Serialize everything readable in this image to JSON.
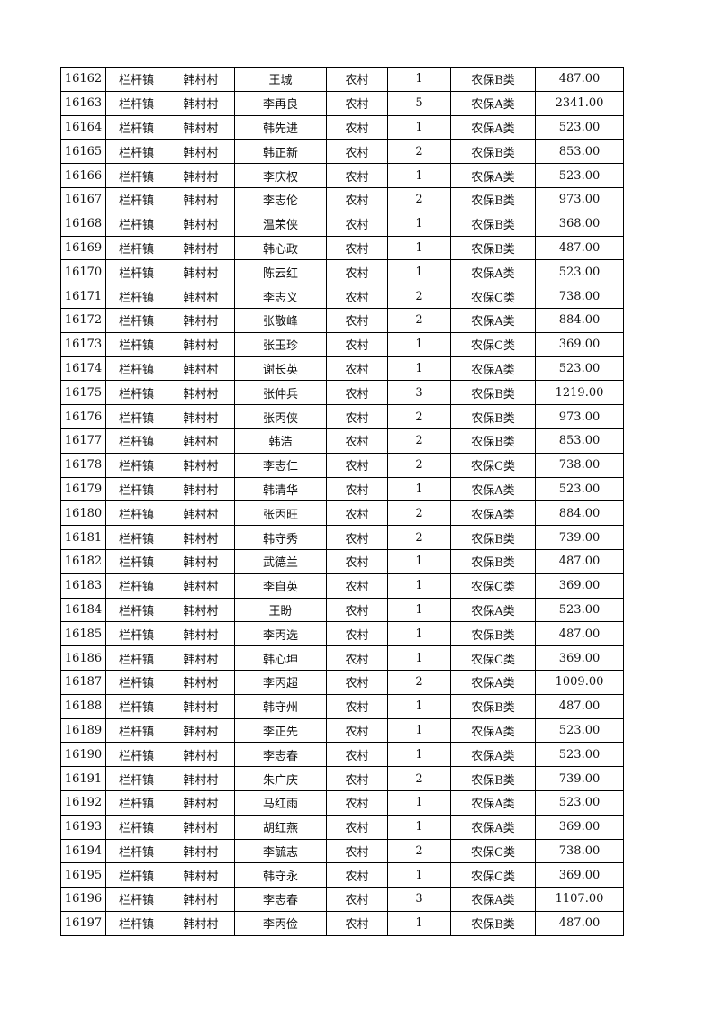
{
  "table": {
    "rows": [
      [
        "16162",
        "栏杆镇",
        "韩村村",
        "王城",
        "农村",
        "1",
        "农保B类",
        "487.00"
      ],
      [
        "16163",
        "栏杆镇",
        "韩村村",
        "李再良",
        "农村",
        "5",
        "农保A类",
        "2341.00"
      ],
      [
        "16164",
        "栏杆镇",
        "韩村村",
        "韩先进",
        "农村",
        "1",
        "农保A类",
        "523.00"
      ],
      [
        "16165",
        "栏杆镇",
        "韩村村",
        "韩正新",
        "农村",
        "2",
        "农保B类",
        "853.00"
      ],
      [
        "16166",
        "栏杆镇",
        "韩村村",
        "李庆权",
        "农村",
        "1",
        "农保A类",
        "523.00"
      ],
      [
        "16167",
        "栏杆镇",
        "韩村村",
        "李志伦",
        "农村",
        "2",
        "农保B类",
        "973.00"
      ],
      [
        "16168",
        "栏杆镇",
        "韩村村",
        "温荣侠",
        "农村",
        "1",
        "农保B类",
        "368.00"
      ],
      [
        "16169",
        "栏杆镇",
        "韩村村",
        "韩心政",
        "农村",
        "1",
        "农保B类",
        "487.00"
      ],
      [
        "16170",
        "栏杆镇",
        "韩村村",
        "陈云红",
        "农村",
        "1",
        "农保A类",
        "523.00"
      ],
      [
        "16171",
        "栏杆镇",
        "韩村村",
        "李志义",
        "农村",
        "2",
        "农保C类",
        "738.00"
      ],
      [
        "16172",
        "栏杆镇",
        "韩村村",
        "张敬峰",
        "农村",
        "2",
        "农保A类",
        "884.00"
      ],
      [
        "16173",
        "栏杆镇",
        "韩村村",
        "张玉珍",
        "农村",
        "1",
        "农保C类",
        "369.00"
      ],
      [
        "16174",
        "栏杆镇",
        "韩村村",
        "谢长英",
        "农村",
        "1",
        "农保A类",
        "523.00"
      ],
      [
        "16175",
        "栏杆镇",
        "韩村村",
        "张仲兵",
        "农村",
        "3",
        "农保B类",
        "1219.00"
      ],
      [
        "16176",
        "栏杆镇",
        "韩村村",
        "张丙侠",
        "农村",
        "2",
        "农保B类",
        "973.00"
      ],
      [
        "16177",
        "栏杆镇",
        "韩村村",
        "韩浩",
        "农村",
        "2",
        "农保B类",
        "853.00"
      ],
      [
        "16178",
        "栏杆镇",
        "韩村村",
        "李志仁",
        "农村",
        "2",
        "农保C类",
        "738.00"
      ],
      [
        "16179",
        "栏杆镇",
        "韩村村",
        "韩清华",
        "农村",
        "1",
        "农保A类",
        "523.00"
      ],
      [
        "16180",
        "栏杆镇",
        "韩村村",
        "张丙旺",
        "农村",
        "2",
        "农保A类",
        "884.00"
      ],
      [
        "16181",
        "栏杆镇",
        "韩村村",
        "韩守秀",
        "农村",
        "2",
        "农保B类",
        "739.00"
      ],
      [
        "16182",
        "栏杆镇",
        "韩村村",
        "武德兰",
        "农村",
        "1",
        "农保B类",
        "487.00"
      ],
      [
        "16183",
        "栏杆镇",
        "韩村村",
        "李自英",
        "农村",
        "1",
        "农保C类",
        "369.00"
      ],
      [
        "16184",
        "栏杆镇",
        "韩村村",
        "王盼",
        "农村",
        "1",
        "农保A类",
        "523.00"
      ],
      [
        "16185",
        "栏杆镇",
        "韩村村",
        "李丙选",
        "农村",
        "1",
        "农保B类",
        "487.00"
      ],
      [
        "16186",
        "栏杆镇",
        "韩村村",
        "韩心坤",
        "农村",
        "1",
        "农保C类",
        "369.00"
      ],
      [
        "16187",
        "栏杆镇",
        "韩村村",
        "李丙超",
        "农村",
        "2",
        "农保A类",
        "1009.00"
      ],
      [
        "16188",
        "栏杆镇",
        "韩村村",
        "韩守州",
        "农村",
        "1",
        "农保B类",
        "487.00"
      ],
      [
        "16189",
        "栏杆镇",
        "韩村村",
        "李正先",
        "农村",
        "1",
        "农保A类",
        "523.00"
      ],
      [
        "16190",
        "栏杆镇",
        "韩村村",
        "李志春",
        "农村",
        "1",
        "农保A类",
        "523.00"
      ],
      [
        "16191",
        "栏杆镇",
        "韩村村",
        "朱广庆",
        "农村",
        "2",
        "农保B类",
        "739.00"
      ],
      [
        "16192",
        "栏杆镇",
        "韩村村",
        "马红雨",
        "农村",
        "1",
        "农保A类",
        "523.00"
      ],
      [
        "16193",
        "栏杆镇",
        "韩村村",
        "胡红燕",
        "农村",
        "1",
        "农保A类",
        "369.00"
      ],
      [
        "16194",
        "栏杆镇",
        "韩村村",
        "李毓志",
        "农村",
        "2",
        "农保C类",
        "738.00"
      ],
      [
        "16195",
        "栏杆镇",
        "韩村村",
        "韩守永",
        "农村",
        "1",
        "农保C类",
        "369.00"
      ],
      [
        "16196",
        "栏杆镇",
        "韩村村",
        "李志春",
        "农村",
        "3",
        "农保A类",
        "1107.00"
      ],
      [
        "16197",
        "栏杆镇",
        "韩村村",
        "李丙俭",
        "农村",
        "1",
        "农保B类",
        "487.00"
      ]
    ]
  }
}
